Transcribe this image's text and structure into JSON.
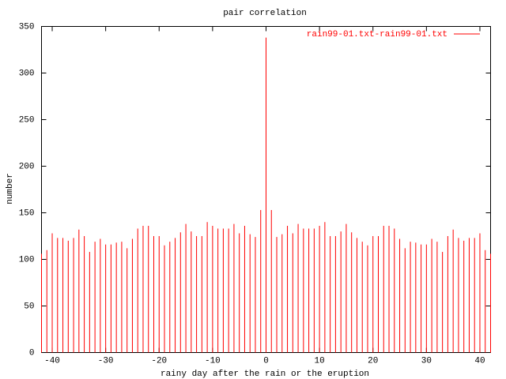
{
  "chart_data": {
    "type": "impulse",
    "title": "pair correlation",
    "xlabel": "rainy day after the rain or the eruption",
    "ylabel": "number",
    "x": [
      -42,
      -41,
      -40,
      -39,
      -38,
      -37,
      -36,
      -35,
      -34,
      -33,
      -32,
      -31,
      -30,
      -29,
      -28,
      -27,
      -26,
      -25,
      -24,
      -23,
      -22,
      -21,
      -20,
      -19,
      -18,
      -17,
      -16,
      -15,
      -14,
      -13,
      -12,
      -11,
      -10,
      -9,
      -8,
      -7,
      -6,
      -5,
      -4,
      -3,
      -2,
      -1,
      0,
      1,
      2,
      3,
      4,
      5,
      6,
      7,
      8,
      9,
      10,
      11,
      12,
      13,
      14,
      15,
      16,
      17,
      18,
      19,
      20,
      21,
      22,
      23,
      24,
      25,
      26,
      27,
      28,
      29,
      30,
      31,
      32,
      33,
      34,
      35,
      36,
      37,
      38,
      39,
      40,
      41,
      42
    ],
    "series": [
      {
        "name": "rain99-01.txt-rain99-01.txt",
        "color": "#ff0000",
        "values": [
          106,
          110,
          128,
          123,
          123,
          120,
          123,
          132,
          125,
          108,
          119,
          122,
          116,
          116,
          118,
          119,
          112,
          122,
          133,
          136,
          136,
          125,
          125,
          115,
          119,
          123,
          129,
          138,
          130,
          125,
          125,
          140,
          136,
          133,
          133,
          133,
          138,
          128,
          136,
          127,
          124,
          153,
          338,
          153,
          124,
          127,
          136,
          128,
          138,
          133,
          133,
          133,
          136,
          140,
          125,
          125,
          130,
          138,
          129,
          123,
          119,
          115,
          125,
          125,
          136,
          136,
          133,
          122,
          112,
          119,
          118,
          116,
          116,
          122,
          119,
          108,
          125,
          132,
          123,
          120,
          123,
          123,
          128,
          110,
          106
        ]
      }
    ],
    "xlim": [
      -42,
      42
    ],
    "xticks": [
      -40,
      -30,
      -20,
      -10,
      0,
      10,
      20,
      30,
      40
    ],
    "ylim": [
      0,
      350
    ],
    "yticks": [
      0,
      50,
      100,
      150,
      200,
      250,
      300,
      350
    ],
    "legend": "top-right"
  }
}
